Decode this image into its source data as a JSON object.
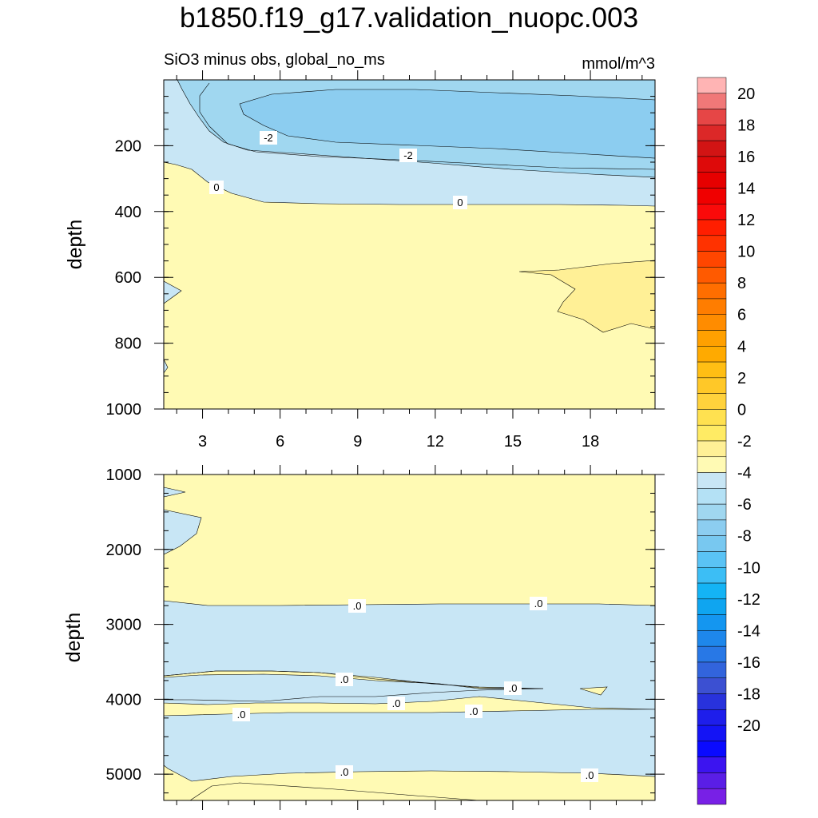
{
  "chart_data": {
    "type": "contour",
    "title": "b1850.f19_g17.validation_nuopc.003",
    "subtitle_left": "SiO3 minus obs, global_no_ms",
    "subtitle_right": "mmol/m^3",
    "x_ticks": [
      "3",
      "6",
      "9",
      "12",
      "15",
      "18"
    ],
    "x_range": [
      1.5,
      20.5
    ],
    "panels": [
      {
        "name": "upper",
        "ylabel": "depth",
        "y_range": [
          0,
          1000
        ],
        "y_ticks": [
          "200",
          "400",
          "600",
          "800",
          "1000"
        ],
        "contour_labels": [
          "-2",
          "-2",
          "0",
          "0"
        ]
      },
      {
        "name": "lower",
        "ylabel": "depth",
        "y_range": [
          1000,
          5350
        ],
        "y_ticks": [
          "1000",
          "2000",
          "3000",
          "4000",
          "5000"
        ],
        "contour_labels": [
          ".0",
          ".0",
          ".0",
          ".0",
          ".0",
          ".0",
          ".0",
          ".0",
          ".0"
        ]
      }
    ],
    "colorbar": {
      "levels": [
        -20,
        -19,
        -18,
        -17,
        -16,
        -15,
        -14,
        -13,
        -12,
        -11,
        -10,
        -9,
        -8,
        -7,
        -6,
        -5,
        -4,
        -3,
        -2,
        -1,
        0,
        1,
        2,
        3,
        4,
        5,
        6,
        7,
        8,
        9,
        10,
        11,
        12,
        13,
        14,
        15,
        16,
        17,
        18,
        19,
        20
      ],
      "labels": [
        "20",
        "18",
        "16",
        "14",
        "12",
        "10",
        "8",
        "6",
        "4",
        "2",
        "0",
        "-2",
        "-4",
        "-6",
        "-8",
        "-10",
        "-12",
        "-14",
        "-16",
        "-18",
        "-20"
      ],
      "colors": [
        "#ffb4b4",
        "#f07878",
        "#e64646",
        "#dc2828",
        "#d21414",
        "#de0a0a",
        "#e60000",
        "#f00000",
        "#fa0a0a",
        "#ff1e00",
        "#ff3200",
        "#ff4600",
        "#ff5a00",
        "#ff6e00",
        "#ff7d00",
        "#ff8c00",
        "#ffa000",
        "#ffaa00",
        "#ffbe14",
        "#ffc828",
        "#ffd23c",
        "#ffe150",
        "#ffeb64",
        "#fff096",
        "#fffab4",
        "#c8e6f5",
        "#b4e1f5",
        "#a0d7f0",
        "#8ccdf0",
        "#78c8f0",
        "#5ac3f5",
        "#3cbef5",
        "#14b4f5",
        "#0fa5f0",
        "#1496f0",
        "#1e87eb",
        "#2878e6",
        "#3264dc",
        "#3c50d2",
        "#2832dc",
        "#1e1eeb",
        "#1414f5",
        "#0a0aff",
        "#3c14f0",
        "#5a1ee6",
        "#7820e6"
      ]
    },
    "fill_colors": {
      "zero_to_pos": "#fffab4",
      "pos1": "#fff096",
      "neg0": "#c8e6f5",
      "neg1": "#a0d7f0",
      "neg2": "#8ccdf0"
    }
  }
}
